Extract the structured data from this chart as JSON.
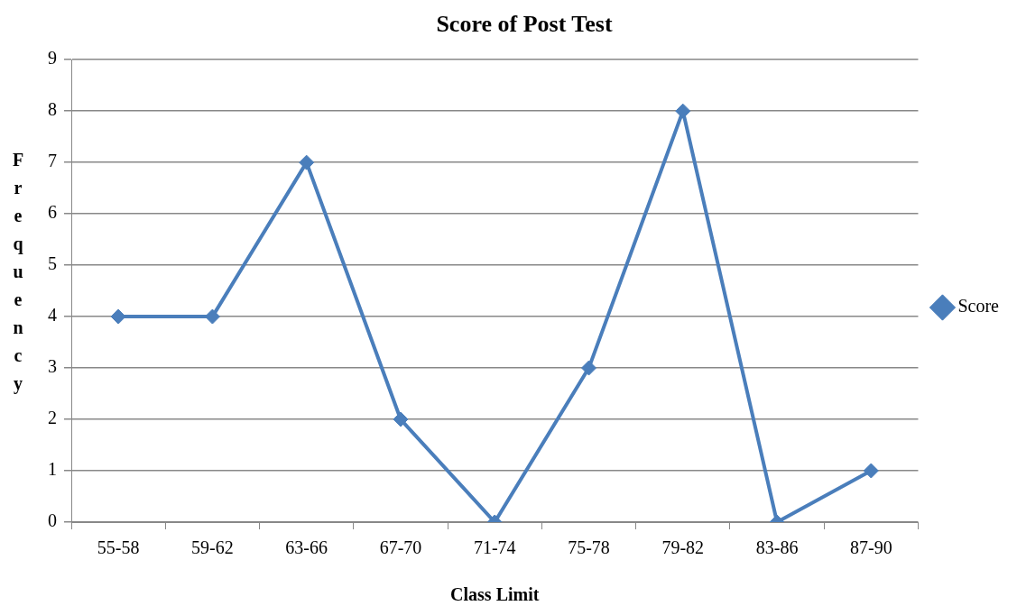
{
  "chart_data": {
    "type": "line",
    "title": "Score of Post Test",
    "xlabel": "Class Limit",
    "ylabel": "Frequency",
    "categories": [
      "55-58",
      "59-62",
      "63-66",
      "67-70",
      "71-74",
      "75-78",
      "79-82",
      "83-86",
      "87-90"
    ],
    "series": [
      {
        "name": "Score",
        "color": "#4a7ebb",
        "values": [
          4,
          4,
          7,
          2,
          0,
          3,
          8,
          0,
          1
        ]
      }
    ],
    "ylim": [
      0,
      9
    ],
    "yticks": [
      0,
      1,
      2,
      3,
      4,
      5,
      6,
      7,
      8,
      9
    ],
    "grid": "y",
    "legend": "right",
    "marker": "diamond",
    "line_style": "solid"
  }
}
